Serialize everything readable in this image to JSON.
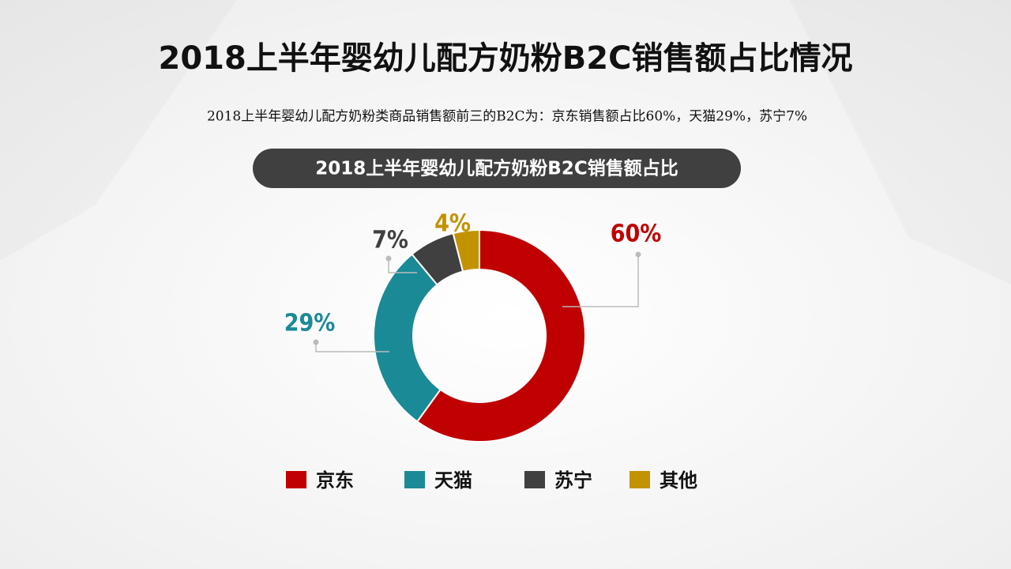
{
  "chart_data": {
    "type": "donut",
    "title": "2018上半年婴幼儿配方奶粉B2C销售额占比情况",
    "subtitle": "2018上半年婴幼儿配方奶粉类商品销售额前三的B2C为：京东销售额占比60%，天猫29%，苏宁7%",
    "chart_title": "2018上半年婴幼儿配方奶粉B2C销售额占比",
    "categories": [
      "京东",
      "天猫",
      "苏宁",
      "其他"
    ],
    "values": [
      60,
      29,
      7,
      4
    ],
    "value_labels": [
      "60%",
      "29%",
      "7%",
      "4%"
    ],
    "colors": [
      "#c00000",
      "#1a8a97",
      "#404040",
      "#c39200"
    ]
  }
}
